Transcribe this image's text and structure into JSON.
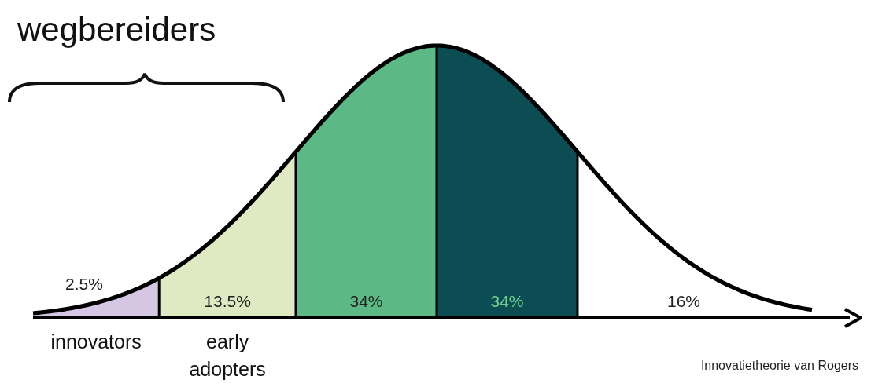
{
  "chart_data": {
    "type": "other",
    "annotations": [
      "wegbereiders",
      "Innovatietheorie van Rogers"
    ],
    "categories": [
      "innovators",
      "early adopters",
      null,
      null,
      null
    ],
    "values": [
      2.5,
      13.5,
      34,
      34,
      16
    ],
    "colors": [
      "#d5c6e4",
      "#dfe9c2",
      "#5cb985",
      "#0b4d53",
      "#ffffff"
    ],
    "value_labels": [
      "2.5%",
      "13.5%",
      "34%",
      "34%",
      "16%"
    ]
  }
}
